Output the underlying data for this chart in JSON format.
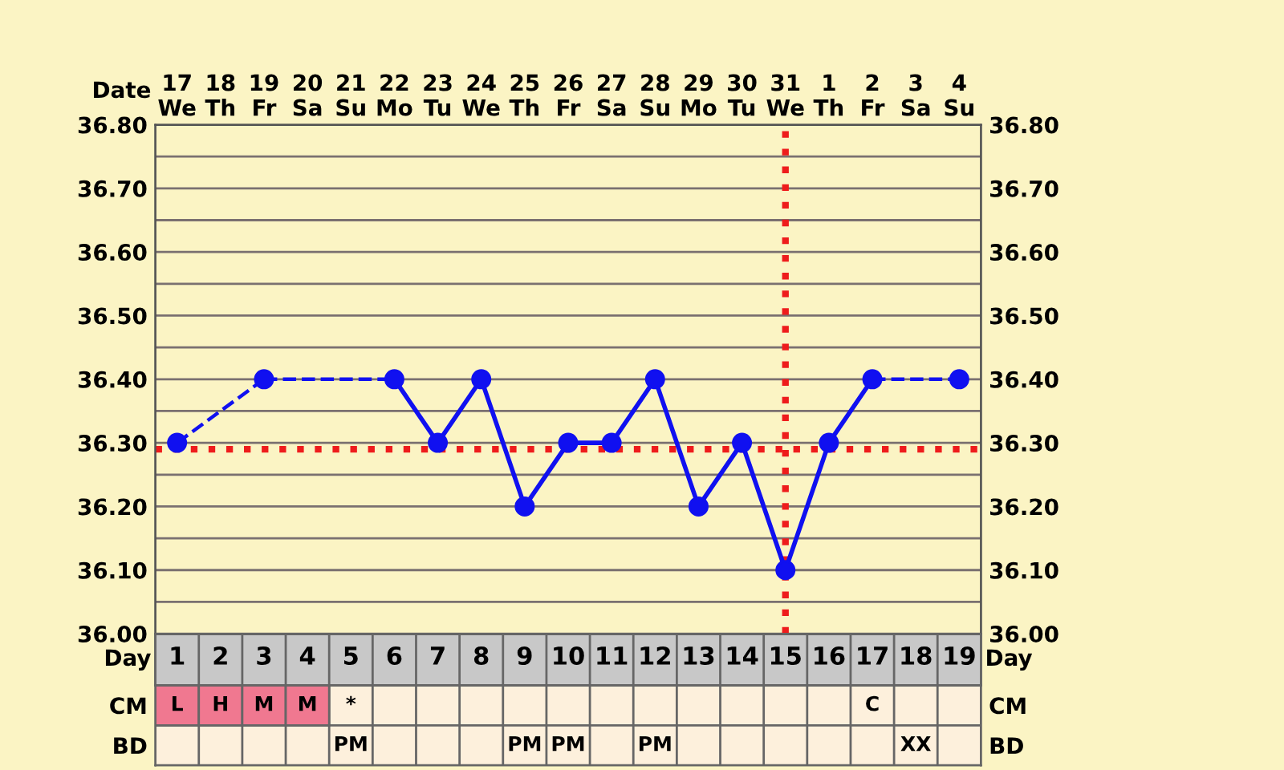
{
  "chart_data": [
    {
      "type": "line",
      "xlabel": "Date",
      "categories": [
        "17\nWe",
        "18\nTh",
        "19\nFr",
        "20\nSa",
        "21\nSu",
        "22\nMo",
        "23\nTu",
        "24\nWe",
        "25\nTh",
        "26\nFr",
        "27\nSa",
        "28\nSu",
        "29\nMo",
        "30\nTu",
        "31\nWe",
        "1\nTh",
        "2\nFr",
        "3\nSa",
        "4\nSu"
      ],
      "series": [
        {
          "color": "#1010f0",
          "values": [
            36.3,
            null,
            36.4,
            null,
            null,
            36.4,
            36.3,
            36.4,
            36.2,
            36.3,
            36.3,
            36.4,
            36.2,
            36.3,
            36.1,
            36.3,
            36.4,
            null,
            36.4
          ]
        }
      ],
      "ylim": [
        36.0,
        36.8
      ],
      "yticks": [
        {
          "value": 36.0,
          "label": "36.00"
        },
        {
          "value": 36.05,
          "label": null
        },
        {
          "value": 36.1,
          "label": "36.10"
        },
        {
          "value": 36.15,
          "label": null
        },
        {
          "value": 36.2,
          "label": "36.20"
        },
        {
          "value": 36.25,
          "label": null
        },
        {
          "value": 36.3,
          "label": "36.30"
        },
        {
          "value": 36.35,
          "label": null
        },
        {
          "value": 36.4,
          "label": "36.40"
        },
        {
          "value": 36.45,
          "label": null
        },
        {
          "value": 36.5,
          "label": "36.50"
        },
        {
          "value": 36.55,
          "label": null
        },
        {
          "value": 36.6,
          "label": "36.60"
        },
        {
          "value": 36.65,
          "label": null
        },
        {
          "value": 36.7,
          "label": "36.70"
        },
        {
          "value": 36.75,
          "label": null
        },
        {
          "value": 36.8,
          "label": "36.80"
        }
      ],
      "y2lim": [
        36.0,
        36.8
      ],
      "y2ticks": [
        {
          "value": 36.0,
          "label": "36.00"
        },
        {
          "value": 36.1,
          "label": "36.10"
        },
        {
          "value": 36.2,
          "label": "36.20"
        },
        {
          "value": 36.3,
          "label": "36.30"
        },
        {
          "value": 36.4,
          "label": "36.40"
        },
        {
          "value": 36.5,
          "label": "36.50"
        },
        {
          "value": 36.6,
          "label": "36.60"
        },
        {
          "value": 36.7,
          "label": "36.70"
        },
        {
          "value": 36.8,
          "label": "36.80"
        }
      ],
      "ref_lines": [
        {
          "axis": "y",
          "value": 36.29,
          "color": "#ee1c1c",
          "line_style": "dotted"
        },
        {
          "axis": "x",
          "value": "31\nWe",
          "color": "#ee1c1c",
          "line_style": "dotted"
        }
      ],
      "marker": "circle",
      "line_style": "solid",
      "grid": true,
      "legend": false
    },
    {
      "type": "heatmap",
      "xlabel": "Day",
      "categories": [
        "1",
        "2",
        "3",
        "4",
        "5",
        "6",
        "7",
        "8",
        "9",
        "10",
        "11",
        "12",
        "13",
        "14",
        "15",
        "16",
        "17",
        "18",
        "19"
      ],
      "y_categories": [
        "CM",
        "BD"
      ],
      "y2_categories": [
        "CM",
        "BD"
      ],
      "cells": [
        [
          null,
          null,
          null,
          null,
          null,
          null,
          null,
          null,
          null,
          null,
          null,
          null,
          null,
          null,
          null,
          null,
          null,
          null,
          null
        ],
        [
          null,
          null,
          null,
          null,
          null,
          null,
          null,
          null,
          null,
          null,
          null,
          null,
          null,
          null,
          null,
          null,
          null,
          null,
          null
        ]
      ],
      "cell_labels": [
        [
          "L",
          "H",
          "M",
          "M",
          "*",
          null,
          null,
          null,
          null,
          null,
          null,
          null,
          null,
          null,
          null,
          null,
          "C",
          null,
          null
        ],
        [
          null,
          null,
          null,
          null,
          "PM",
          null,
          null,
          null,
          "PM",
          "PM",
          null,
          "PM",
          null,
          null,
          null,
          null,
          null,
          "XX",
          null
        ]
      ],
      "colors": [
        [
          "#f07890",
          "#f07890",
          "#f07890",
          "#f07890",
          null,
          null,
          null,
          null,
          null,
          null,
          null,
          null,
          null,
          null,
          null,
          null,
          null,
          null,
          null
        ],
        [
          null,
          null,
          null,
          null,
          null,
          null,
          null,
          null,
          null,
          null,
          null,
          null,
          null,
          null,
          null,
          null,
          null,
          null,
          null
        ]
      ]
    }
  ]
}
